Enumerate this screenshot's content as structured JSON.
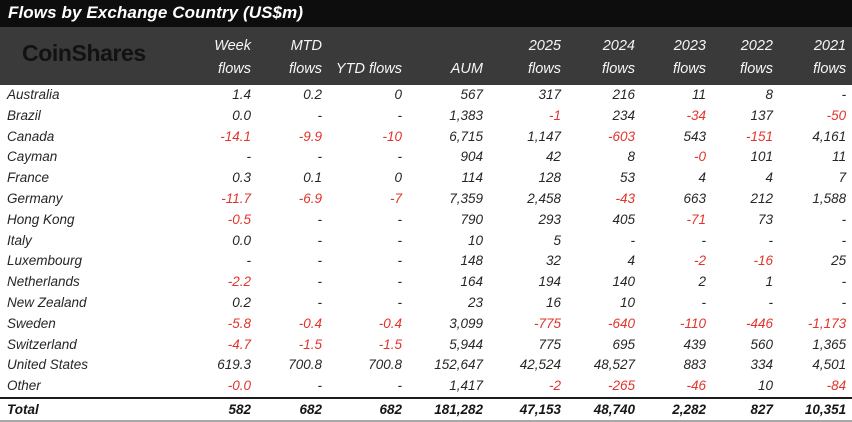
{
  "title": "Flows by Exchange Country (US$m)",
  "logo": "CoinShares",
  "colors": {
    "title_bg": "#0d0d0d",
    "header_bg": "#3a3a3a",
    "negative": "#e2342c",
    "text": "#262626"
  },
  "chart_data": {
    "type": "table",
    "title": "Flows by Exchange Country (US$m)",
    "columns": [
      {
        "id": "country",
        "line1": "",
        "line2": ""
      },
      {
        "id": "week",
        "line1": "Week",
        "line2": "flows"
      },
      {
        "id": "mtd",
        "line1": "MTD",
        "line2": "flows"
      },
      {
        "id": "ytd",
        "line1": "",
        "line2": "YTD flows"
      },
      {
        "id": "aum",
        "line1": "",
        "line2": "AUM"
      },
      {
        "id": "2025",
        "line1": "2025",
        "line2": "flows"
      },
      {
        "id": "2024",
        "line1": "2024",
        "line2": "flows"
      },
      {
        "id": "2023",
        "line1": "2023",
        "line2": "flows"
      },
      {
        "id": "2022",
        "line1": "2022",
        "line2": "flows"
      },
      {
        "id": "2021",
        "line1": "2021",
        "line2": "flows"
      }
    ],
    "rows": [
      {
        "country": "Australia",
        "values": [
          "1.4",
          "0.2",
          "0",
          "567",
          "317",
          "216",
          "11",
          "8",
          "-"
        ]
      },
      {
        "country": "Brazil",
        "values": [
          "0.0",
          "-",
          "-",
          "1,383",
          "-1",
          "234",
          "-34",
          "137",
          "-50"
        ]
      },
      {
        "country": "Canada",
        "values": [
          "-14.1",
          "-9.9",
          "-10",
          "6,715",
          "1,147",
          "-603",
          "543",
          "-151",
          "4,161"
        ]
      },
      {
        "country": "Cayman",
        "values": [
          "-",
          "-",
          "-",
          "904",
          "42",
          "8",
          "-0",
          "101",
          "11"
        ]
      },
      {
        "country": "France",
        "values": [
          "0.3",
          "0.1",
          "0",
          "114",
          "128",
          "53",
          "4",
          "4",
          "7"
        ]
      },
      {
        "country": "Germany",
        "values": [
          "-11.7",
          "-6.9",
          "-7",
          "7,359",
          "2,458",
          "-43",
          "663",
          "212",
          "1,588"
        ]
      },
      {
        "country": "Hong Kong",
        "values": [
          "-0.5",
          "-",
          "-",
          "790",
          "293",
          "405",
          "-71",
          "73",
          "-"
        ]
      },
      {
        "country": "Italy",
        "values": [
          "0.0",
          "-",
          "-",
          "10",
          "5",
          "-",
          "-",
          "-",
          "-"
        ]
      },
      {
        "country": "Luxembourg",
        "values": [
          "-",
          "-",
          "-",
          "148",
          "32",
          "4",
          "-2",
          "-16",
          "25"
        ]
      },
      {
        "country": "Netherlands",
        "values": [
          "-2.2",
          "-",
          "-",
          "164",
          "194",
          "140",
          "2",
          "1",
          "-"
        ]
      },
      {
        "country": "New Zealand",
        "values": [
          "0.2",
          "-",
          "-",
          "23",
          "16",
          "10",
          "-",
          "-",
          "-"
        ]
      },
      {
        "country": "Sweden",
        "values": [
          "-5.8",
          "-0.4",
          "-0.4",
          "3,099",
          "-775",
          "-640",
          "-110",
          "-446",
          "-1,173"
        ]
      },
      {
        "country": "Switzerland",
        "values": [
          "-4.7",
          "-1.5",
          "-1.5",
          "5,944",
          "775",
          "695",
          "439",
          "560",
          "1,365"
        ]
      },
      {
        "country": "United States",
        "values": [
          "619.3",
          "700.8",
          "700.8",
          "152,647",
          "42,524",
          "48,527",
          "883",
          "334",
          "4,501"
        ]
      },
      {
        "country": "Other",
        "values": [
          "-0.0",
          "-",
          "-",
          "1,417",
          "-2",
          "-265",
          "-46",
          "10",
          "-84"
        ]
      }
    ],
    "total": {
      "label": "Total",
      "values": [
        "582",
        "682",
        "682",
        "181,282",
        "47,153",
        "48,740",
        "2,282",
        "827",
        "10,351"
      ]
    }
  }
}
